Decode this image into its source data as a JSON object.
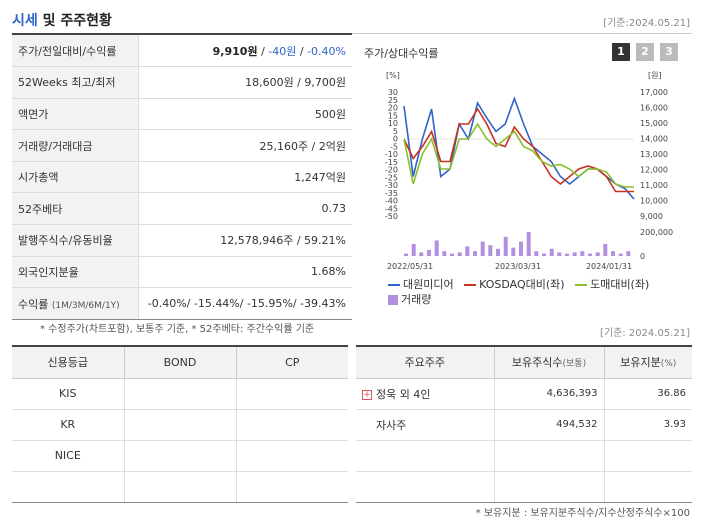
{
  "header": {
    "title_accent": "시세",
    "title_rest": "및 주주현황",
    "base_date": "[기준:2024.05.21]"
  },
  "quote": {
    "rows": [
      {
        "label": "주가/전일대비/수익률",
        "price": "9,910원",
        "change": "-40원",
        "rate": "-0.40%"
      },
      {
        "label": "52Weeks 최고/최저",
        "value": "18,600원 / 9,700원"
      },
      {
        "label": "액면가",
        "value": "500원"
      },
      {
        "label": "거래량/거래대금",
        "value": "25,160주 / 2억원"
      },
      {
        "label": "시가총액",
        "value": "1,247억원"
      },
      {
        "label": "52주베타",
        "value": "0.73"
      },
      {
        "label": "발행주식수/유동비율",
        "value": "12,578,946주 / 59.21%"
      },
      {
        "label": "외국인지분율",
        "value": "1.68%"
      },
      {
        "label": "수익률",
        "label_sub": "(1M/3M/6M/1Y)",
        "value": "-0.40%/ -15.44%/ -15.95%/ -39.43%"
      }
    ],
    "note": "* 수정주가(차트포함), 보통주 기준, * 52주베타: 주간수익률 기준"
  },
  "chart_header": {
    "title": "주가/상대수익률",
    "buttons": [
      "1",
      "2",
      "3"
    ]
  },
  "chart_data": {
    "type": "line",
    "left_unit": "[%]",
    "right_unit": "[원]",
    "left_ticks": [
      "30",
      "25",
      "20",
      "15",
      "10",
      "5",
      "0",
      "-5",
      "-10",
      "-15",
      "-20",
      "-25",
      "-30",
      "-35",
      "-40",
      "-45",
      "-50"
    ],
    "right_ticks": [
      "17,000",
      "16,000",
      "15,000",
      "14,000",
      "13,000",
      "12,000",
      "11,000",
      "10,000",
      "9,000"
    ],
    "volume_ticks": [
      "200,000",
      "0"
    ],
    "x_labels": [
      "2022/05/31",
      "2023/03/31",
      "2024/01/31"
    ],
    "ylim_left": [
      -50,
      30
    ],
    "series": [
      {
        "name": "대원미디어",
        "color": "#2f64c8",
        "axis": "left",
        "values": [
          22,
          -25,
          0,
          20,
          -25,
          -20,
          10,
          0,
          24,
          14,
          5,
          10,
          27,
          10,
          -5,
          -10,
          -15,
          -25,
          -30,
          -25,
          -20,
          -20,
          -25,
          -30,
          -33,
          -40
        ]
      },
      {
        "name": "KOSDAQ대비(좌)",
        "color": "#c8321e",
        "axis": "left",
        "values": [
          0,
          -13,
          -5,
          5,
          -15,
          -15,
          10,
          10,
          20,
          10,
          -3,
          -5,
          8,
          0,
          -5,
          -15,
          -25,
          -30,
          -25,
          -20,
          -18,
          -20,
          -25,
          -35,
          -35,
          -35
        ]
      },
      {
        "name": "도매대비(좌)",
        "color": "#8cbe2d",
        "axis": "left",
        "values": [
          0,
          -30,
          -10,
          0,
          -20,
          -20,
          0,
          0,
          10,
          0,
          -5,
          0,
          5,
          -5,
          -8,
          -15,
          -18,
          -17,
          -20,
          -25,
          -20,
          -20,
          -22,
          -30,
          -32,
          -32
        ]
      },
      {
        "name": "거래량",
        "color": "#b38fe0",
        "axis": "volume",
        "values": [
          20,
          100,
          30,
          50,
          130,
          40,
          20,
          30,
          80,
          40,
          120,
          90,
          60,
          160,
          70,
          120,
          200,
          40,
          20,
          60,
          30,
          20,
          30,
          40,
          20,
          30,
          100,
          40,
          20,
          40
        ]
      }
    ]
  },
  "credit": {
    "headers": [
      "신용등급",
      "BOND",
      "CP"
    ],
    "rows": [
      [
        "KIS",
        "",
        ""
      ],
      [
        "KR",
        "",
        ""
      ],
      [
        "NICE",
        "",
        ""
      ],
      [
        "",
        "",
        ""
      ]
    ]
  },
  "holders": {
    "headers": {
      "col1": "주요주주",
      "col2": "보유주식수",
      "col2_sub": "(보통)",
      "col3": "보유지분",
      "col3_sub": "(%)"
    },
    "rows": [
      {
        "name": "정욱 외 4인",
        "shares": "4,636,393",
        "pct": "36.86"
      },
      {
        "name": "자사주",
        "shares": "494,532",
        "pct": "3.93"
      },
      {
        "name": "",
        "shares": "",
        "pct": ""
      },
      {
        "name": "",
        "shares": "",
        "pct": ""
      }
    ],
    "note": "* 보유지분 : 보유지분주식수/지수산정주식수×100",
    "base_date": "[기준: 2024.05.21]"
  }
}
